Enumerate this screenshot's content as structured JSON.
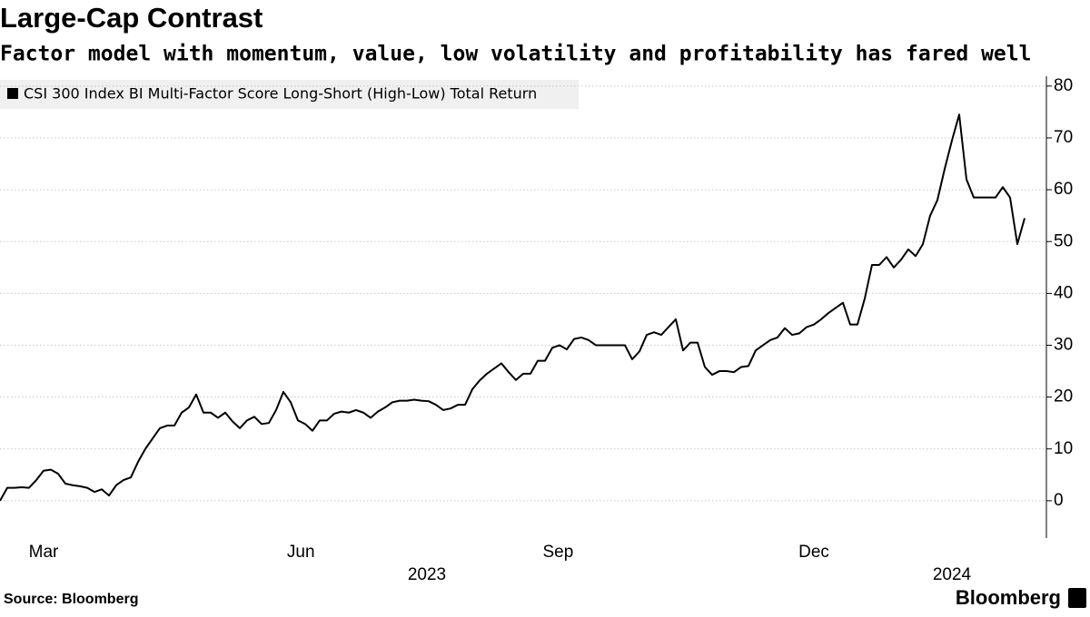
{
  "chart_data": {
    "type": "line",
    "title": "Large-Cap Contrast",
    "subtitle": "Factor model with momentum, value, low volatility and profitability has fared well",
    "series": [
      {
        "name": "CSI 300 Index BI Multi-Factor Score Long-Short (High-Low) Total Return",
        "color": "#000000",
        "values": [
          0,
          2.5,
          2.5,
          2.6,
          2.5,
          4,
          5.8,
          6,
          5.2,
          3.3,
          3,
          2.8,
          2.5,
          1.7,
          2.2,
          1,
          3,
          4,
          4.5,
          7.5,
          10,
          12,
          14,
          14.5,
          14.5,
          17,
          18,
          20.5,
          17,
          17,
          16,
          17,
          15.3,
          14,
          15.5,
          16.2,
          14.8,
          15,
          17.5,
          21,
          19,
          15.5,
          14.8,
          13.5,
          15.5,
          15.5,
          16.8,
          17.2,
          17,
          17.5,
          17,
          16,
          17.2,
          18,
          19,
          19.3,
          19.3,
          19.5,
          19.3,
          19.2,
          18.5,
          17.5,
          17.8,
          18.5,
          18.5,
          21.5,
          23.2,
          24.5,
          25.5,
          26.5,
          24.8,
          23.3,
          24.5,
          24.5,
          27,
          27,
          29.5,
          30,
          29.2,
          31.2,
          31.5,
          31,
          30,
          30,
          30,
          30,
          30,
          27.3,
          28.8,
          32,
          32.5,
          32,
          33.5,
          35,
          29,
          30.5,
          30.5,
          25.8,
          24.3,
          25,
          25,
          24.8,
          25.8,
          26,
          29,
          30,
          31,
          31.5,
          33.3,
          32,
          32.3,
          33.5,
          34,
          35,
          36.2,
          37.2,
          38.2,
          34,
          34,
          39,
          45.5,
          45.5,
          47,
          45,
          46.5,
          48.5,
          47.2,
          49.5,
          55,
          58,
          64,
          69.5,
          74.5,
          62,
          58.5,
          58.5,
          58.5,
          58.5,
          60.5,
          58.5,
          49.5,
          54.5
        ]
      }
    ],
    "xlim": [
      0,
      144
    ],
    "xticks": [
      {
        "value": 6,
        "label": "Mar"
      },
      {
        "value": 41.4,
        "label": "Jun"
      },
      {
        "value": 76.8,
        "label": "Sep"
      },
      {
        "value": 112,
        "label": "Dec"
      }
    ],
    "year_ticks": [
      {
        "value": 58.75,
        "label": "2023"
      },
      {
        "value": 131,
        "label": "2024"
      }
    ],
    "ylim": [
      -7.2,
      81.9
    ],
    "yticks": [
      0,
      10,
      20,
      30,
      40,
      50,
      60,
      70,
      80
    ],
    "grid": true,
    "source": "Source: Bloomberg",
    "brand": "Bloomberg"
  }
}
